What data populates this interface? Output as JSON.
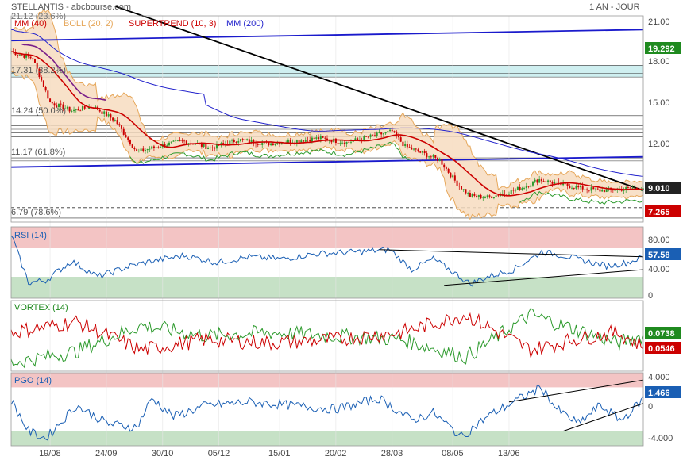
{
  "header": {
    "title": "STELLANTIS - abcbourse.com",
    "period": "1 AN - JOUR"
  },
  "colors": {
    "mm40": "#cc0000",
    "boll": "#e6a75a",
    "boll_fill": "#f7dcc0",
    "supertrend": "#cc0000",
    "supertrend_up": "#2e9b2e",
    "mm200": "#2222cc",
    "trend_black": "#000000",
    "channel_blue": "#1a1acc",
    "candle_up": "#2e9b2e",
    "candle_down": "#cc0000",
    "zone_red": "#f3c4c4",
    "zone_green": "#c6e1c6",
    "fib_fill": "#cfeff0",
    "badge_green": "#1f8a1f",
    "badge_red": "#cc0000",
    "badge_black": "#222222",
    "badge_blue": "#1a5fb4"
  },
  "chart_data": [
    {
      "type": "line",
      "panel": "price",
      "legend": [
        "MM (40)",
        "BOLL (20, 2)",
        "SUPERTREND (10, 3)",
        "MM (200)"
      ],
      "ylim": [
        6.5,
        21.5
      ],
      "y_ticks": [
        "21.00",
        "18.00",
        "15.00",
        "12.00"
      ],
      "fib_levels": [
        {
          "label": "17.31  (38.2%)",
          "value": 17.31
        },
        {
          "label": "14.24  (50.0%)",
          "value": 14.24
        },
        {
          "label": "11.17  (61.8%)",
          "value": 11.17
        },
        {
          "label": "6.79  (78.6%)",
          "value": 6.79
        }
      ],
      "top_fib_label": "21.12  (23.6%)",
      "badges": [
        {
          "text": "19.292",
          "value": 19.292,
          "color": "badge_green"
        },
        {
          "text": "9.010",
          "value": 9.01,
          "color": "badge_black"
        },
        {
          "text": "7.265",
          "value": 7.265,
          "color": "badge_red"
        }
      ],
      "key_points_close": [
        [
          0,
          18.9
        ],
        [
          10,
          18.4
        ],
        [
          18,
          15.2
        ],
        [
          28,
          14.6
        ],
        [
          38,
          14.9
        ],
        [
          48,
          13.9
        ],
        [
          58,
          11.6
        ],
        [
          70,
          12.1
        ],
        [
          80,
          12.4
        ],
        [
          92,
          11.9
        ],
        [
          105,
          12.5
        ],
        [
          118,
          12.2
        ],
        [
          130,
          12.4
        ],
        [
          142,
          12.6
        ],
        [
          155,
          12.3
        ],
        [
          168,
          12.8
        ],
        [
          176,
          13.1
        ],
        [
          182,
          12.0
        ],
        [
          190,
          11.5
        ],
        [
          198,
          11.0
        ],
        [
          206,
          9.3
        ],
        [
          212,
          8.4
        ],
        [
          220,
          8.3
        ],
        [
          228,
          8.6
        ],
        [
          236,
          9.0
        ],
        [
          244,
          9.6
        ],
        [
          252,
          9.3
        ],
        [
          262,
          9.0
        ],
        [
          272,
          8.8
        ],
        [
          282,
          8.9
        ],
        [
          292,
          9.0
        ]
      ]
    },
    {
      "type": "line",
      "panel": "rsi",
      "legend": [
        "RSI (14)"
      ],
      "ylim": [
        0,
        100
      ],
      "y_ticks": [
        "80.00",
        "40.00",
        "0"
      ],
      "zones": [
        70,
        30
      ],
      "last_value": {
        "text": "57.58",
        "value": 57.58
      },
      "key_points": [
        [
          0,
          90
        ],
        [
          4,
          55
        ],
        [
          8,
          22
        ],
        [
          16,
          25
        ],
        [
          28,
          52
        ],
        [
          40,
          30
        ],
        [
          55,
          45
        ],
        [
          65,
          52
        ],
        [
          80,
          60
        ],
        [
          95,
          50
        ],
        [
          110,
          58
        ],
        [
          125,
          55
        ],
        [
          140,
          62
        ],
        [
          160,
          65
        ],
        [
          175,
          68
        ],
        [
          185,
          40
        ],
        [
          195,
          55
        ],
        [
          205,
          35
        ],
        [
          212,
          20
        ],
        [
          220,
          30
        ],
        [
          232,
          40
        ],
        [
          245,
          65
        ],
        [
          255,
          60
        ],
        [
          265,
          52
        ],
        [
          275,
          45
        ],
        [
          285,
          50
        ],
        [
          292,
          58
        ]
      ]
    },
    {
      "type": "line",
      "panel": "vortex",
      "legend": [
        "VORTEX (14)"
      ],
      "ylim": [
        0.5,
        1.5
      ],
      "series": [
        {
          "name": "VI+",
          "color": "supertrend_up",
          "key_points": [
            [
              0,
              0.62
            ],
            [
              30,
              0.78
            ],
            [
              60,
              1.15
            ],
            [
              90,
              1.0
            ],
            [
              120,
              1.05
            ],
            [
              150,
              1.0
            ],
            [
              180,
              0.95
            ],
            [
              210,
              0.7
            ],
            [
              240,
              1.3
            ],
            [
              260,
              1.1
            ],
            [
              280,
              0.9
            ],
            [
              292,
              1.0
            ]
          ]
        },
        {
          "name": "VI-",
          "color": "candle_down",
          "key_points": [
            [
              0,
              1.05
            ],
            [
              30,
              1.2
            ],
            [
              60,
              0.8
            ],
            [
              90,
              0.95
            ],
            [
              120,
              0.9
            ],
            [
              150,
              0.95
            ],
            [
              180,
              1.05
            ],
            [
              210,
              1.3
            ],
            [
              240,
              0.8
            ],
            [
              260,
              0.95
            ],
            [
              280,
              1.05
            ],
            [
              292,
              0.85
            ]
          ]
        }
      ],
      "badges": [
        {
          "text": "0.0738",
          "value": 0.0738,
          "color": "badge_green"
        },
        {
          "text": "0.0546",
          "value": 0.0546,
          "color": "badge_red"
        }
      ]
    },
    {
      "type": "line",
      "panel": "pgo",
      "legend": [
        "PGO (14)"
      ],
      "ylim": [
        -5,
        5
      ],
      "y_ticks": [
        "4.000",
        "0",
        "-4.000"
      ],
      "zones": [
        3,
        -3
      ],
      "last_value": {
        "text": "1.466",
        "value": 1.466
      },
      "key_points": [
        [
          0,
          1.2
        ],
        [
          8,
          -3.0
        ],
        [
          16,
          -4.0
        ],
        [
          30,
          0.5
        ],
        [
          45,
          -2.0
        ],
        [
          58,
          -2.5
        ],
        [
          65,
          1.5
        ],
        [
          75,
          -1.0
        ],
        [
          90,
          0.5
        ],
        [
          110,
          1.0
        ],
        [
          130,
          0.5
        ],
        [
          150,
          0.0
        ],
        [
          170,
          1.5
        ],
        [
          185,
          -1.5
        ],
        [
          195,
          -0.5
        ],
        [
          208,
          -3.8
        ],
        [
          220,
          -1.0
        ],
        [
          232,
          1.0
        ],
        [
          245,
          3.0
        ],
        [
          252,
          0.0
        ],
        [
          262,
          -2.0
        ],
        [
          272,
          0.5
        ],
        [
          282,
          -1.5
        ],
        [
          292,
          1.4
        ]
      ]
    }
  ],
  "x_axis": {
    "labels": [
      "19/08",
      "24/09",
      "30/10",
      "05/12",
      "15/01",
      "20/02",
      "28/03",
      "08/05",
      "13/06"
    ],
    "label_index": [
      18,
      44,
      70,
      96,
      124,
      150,
      176,
      204,
      230
    ],
    "n_points": 293
  }
}
